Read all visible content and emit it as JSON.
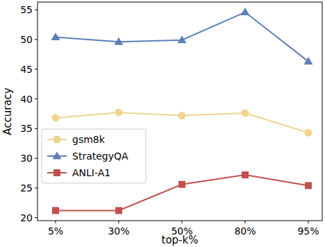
{
  "chart_data": {
    "type": "line",
    "x_label": "top-k%",
    "y_label": "Accuracy",
    "categories": [
      "5%",
      "30%",
      "50%",
      "80%",
      "95%"
    ],
    "series": [
      {
        "name": "gsm8k",
        "color": "#f0d48e",
        "marker": "circle",
        "values": [
          36.8,
          37.7,
          37.2,
          37.6,
          34.3
        ]
      },
      {
        "name": "StrategyQA",
        "color": "#5b7fb8",
        "marker": "triangle",
        "values": [
          50.4,
          49.6,
          49.9,
          54.6,
          46.3
        ]
      },
      {
        "name": "ANLI-A1",
        "color": "#c0504d",
        "marker": "square",
        "values": [
          21.2,
          21.2,
          25.6,
          27.2,
          25.4
        ]
      }
    ],
    "ylim": [
      19.5,
      56.3
    ],
    "yticks": [
      20,
      25,
      30,
      35,
      40,
      45,
      50,
      55
    ],
    "grid": false,
    "legend": "center left"
  }
}
